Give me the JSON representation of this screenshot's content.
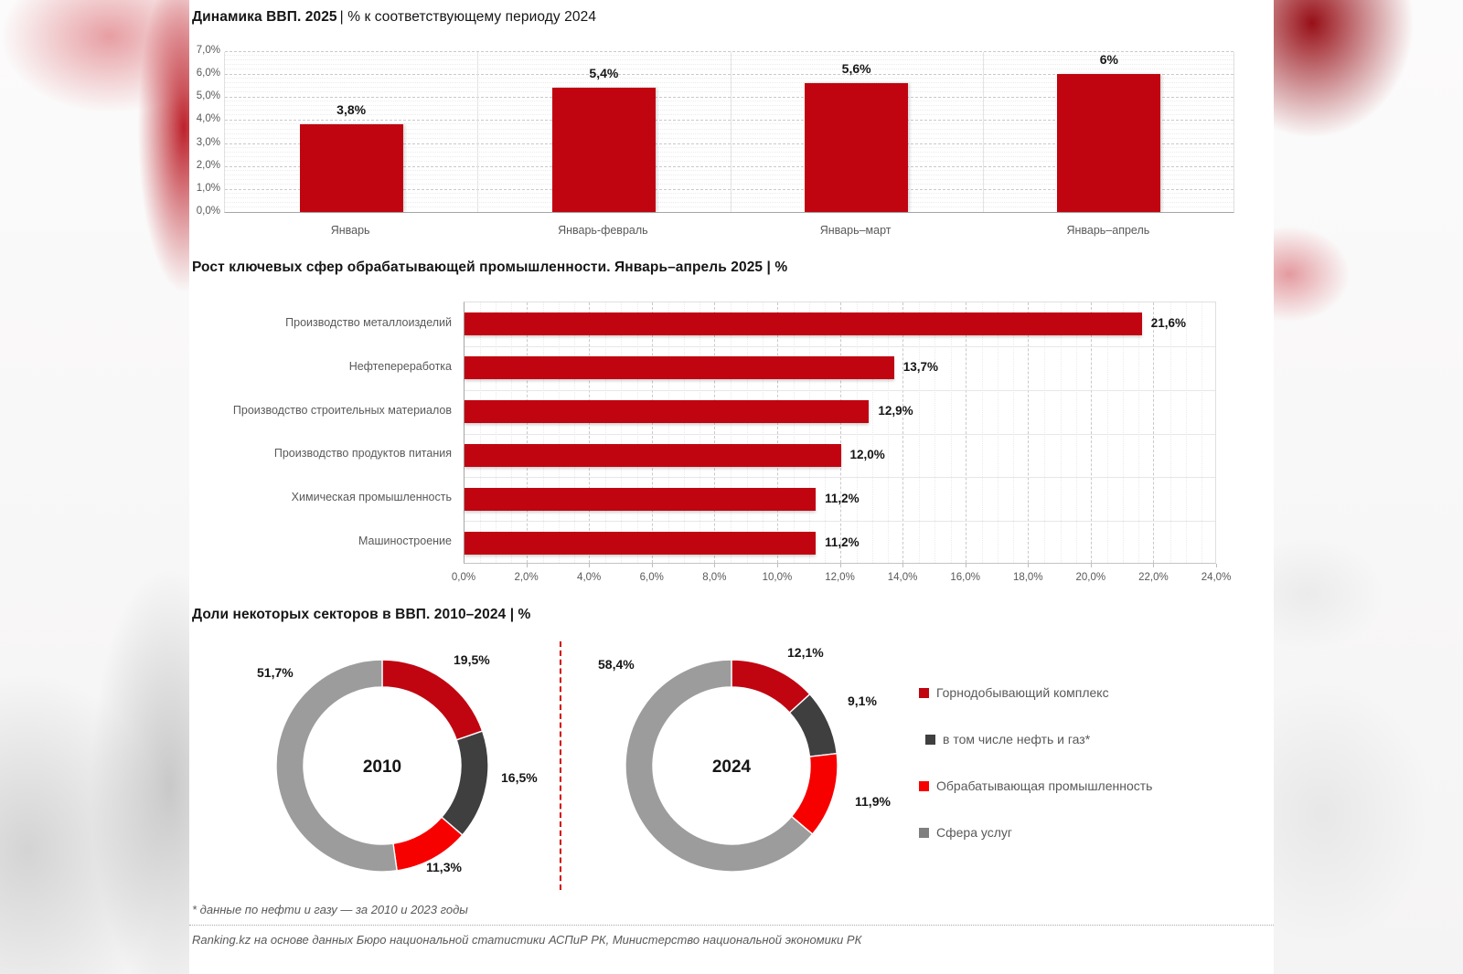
{
  "headers": {
    "h1_bold": "Динамика ВВП. 2025",
    "h1_rest": "| % к соответствующему периоду 2024"
  },
  "colors": {
    "dark_red": "#c00511",
    "bright_red": "#f70000",
    "dark_gray": "#3f3f3f",
    "donut_gray": "#9c9c9c",
    "legend_gray": "#7f7f7f",
    "divider_red": "#d10000"
  },
  "chart_data": [
    {
      "type": "bar",
      "title": "Динамика ВВП. 2025 | % к соответствующему периоду 2024",
      "categories": [
        "Январь",
        "Январь-февраль",
        "Январь–март",
        "Январь–апрель"
      ],
      "values": [
        3.8,
        5.4,
        5.6,
        6.0
      ],
      "value_labels": [
        "3,8%",
        "5,4%",
        "5,6%",
        "6%"
      ],
      "ylim": [
        0,
        7
      ],
      "ytick_values": [
        0,
        1,
        2,
        3,
        4,
        5,
        6,
        7
      ],
      "ytick_labels": [
        "0,0%",
        "1,0%",
        "2,0%",
        "3,0%",
        "4,0%",
        "5,0%",
        "6,0%",
        "7,0%"
      ],
      "grid": "dashed horizontal, dotted minor",
      "bar_color": "#c00511"
    },
    {
      "type": "bar",
      "orientation": "horizontal",
      "title": "Рост ключевых сфер обрабатывающей промышленности. Январь–апрель 2025 | %",
      "categories": [
        "Производство металлоизделий",
        "Нефтепереработка",
        "Производство строительных материалов",
        "Производство продуктов питания",
        "Химическая промышленность",
        "Машиностроение"
      ],
      "values": [
        21.6,
        13.7,
        12.9,
        12.0,
        11.2,
        11.2
      ],
      "value_labels": [
        "21,6%",
        "13,7%",
        "12,9%",
        "12,0%",
        "11,2%",
        "11,2%"
      ],
      "xlim": [
        0,
        24
      ],
      "xtick_values": [
        0,
        2,
        4,
        6,
        8,
        10,
        12,
        14,
        16,
        18,
        20,
        22,
        24
      ],
      "xtick_labels": [
        "0,0%",
        "2,0%",
        "4,0%",
        "6,0%",
        "8,0%",
        "10,0%",
        "12,0%",
        "14,0%",
        "16,0%",
        "18,0%",
        "20,0%",
        "22,0%",
        "24,0%"
      ],
      "grid": "dashed vertical, dotted minor",
      "bar_color": "#c00511"
    },
    {
      "type": "pie",
      "variant": "double-donut",
      "title": "Доли некоторых секторов в ВВП. 2010–2024 | %",
      "segment_colors": [
        "#c00511",
        "#3f3f3f",
        "#f70000",
        "#9c9c9c"
      ],
      "legend": [
        {
          "label": "Горнодобывающий комплекс",
          "color": "#c00511"
        },
        {
          "label": "в том числе нефть и газ*",
          "color": "#3f3f3f"
        },
        {
          "label": "Обрабатывающая промышленность",
          "color": "#f70000"
        },
        {
          "label": "Сфера услуг",
          "color": "#7f7f7f"
        }
      ],
      "donuts": [
        {
          "center_label": "2010",
          "values": [
            19.5,
            16.5,
            11.3,
            51.7
          ],
          "labels": [
            "19,5%",
            "16,5%",
            "11,3%",
            "51,7%"
          ]
        },
        {
          "center_label": "2024",
          "values": [
            12.1,
            9.1,
            11.9,
            58.4
          ],
          "labels": [
            "12,1%",
            "9,1%",
            "11,9%",
            "58,4%"
          ]
        }
      ]
    }
  ],
  "footer": {
    "note": "* данные по нефти и газу — за 2010 и 2023 годы",
    "source": "Ranking.kz на основе данных Бюро национальной статистики АСПиР РК, Министерство национальной экономики РК"
  }
}
